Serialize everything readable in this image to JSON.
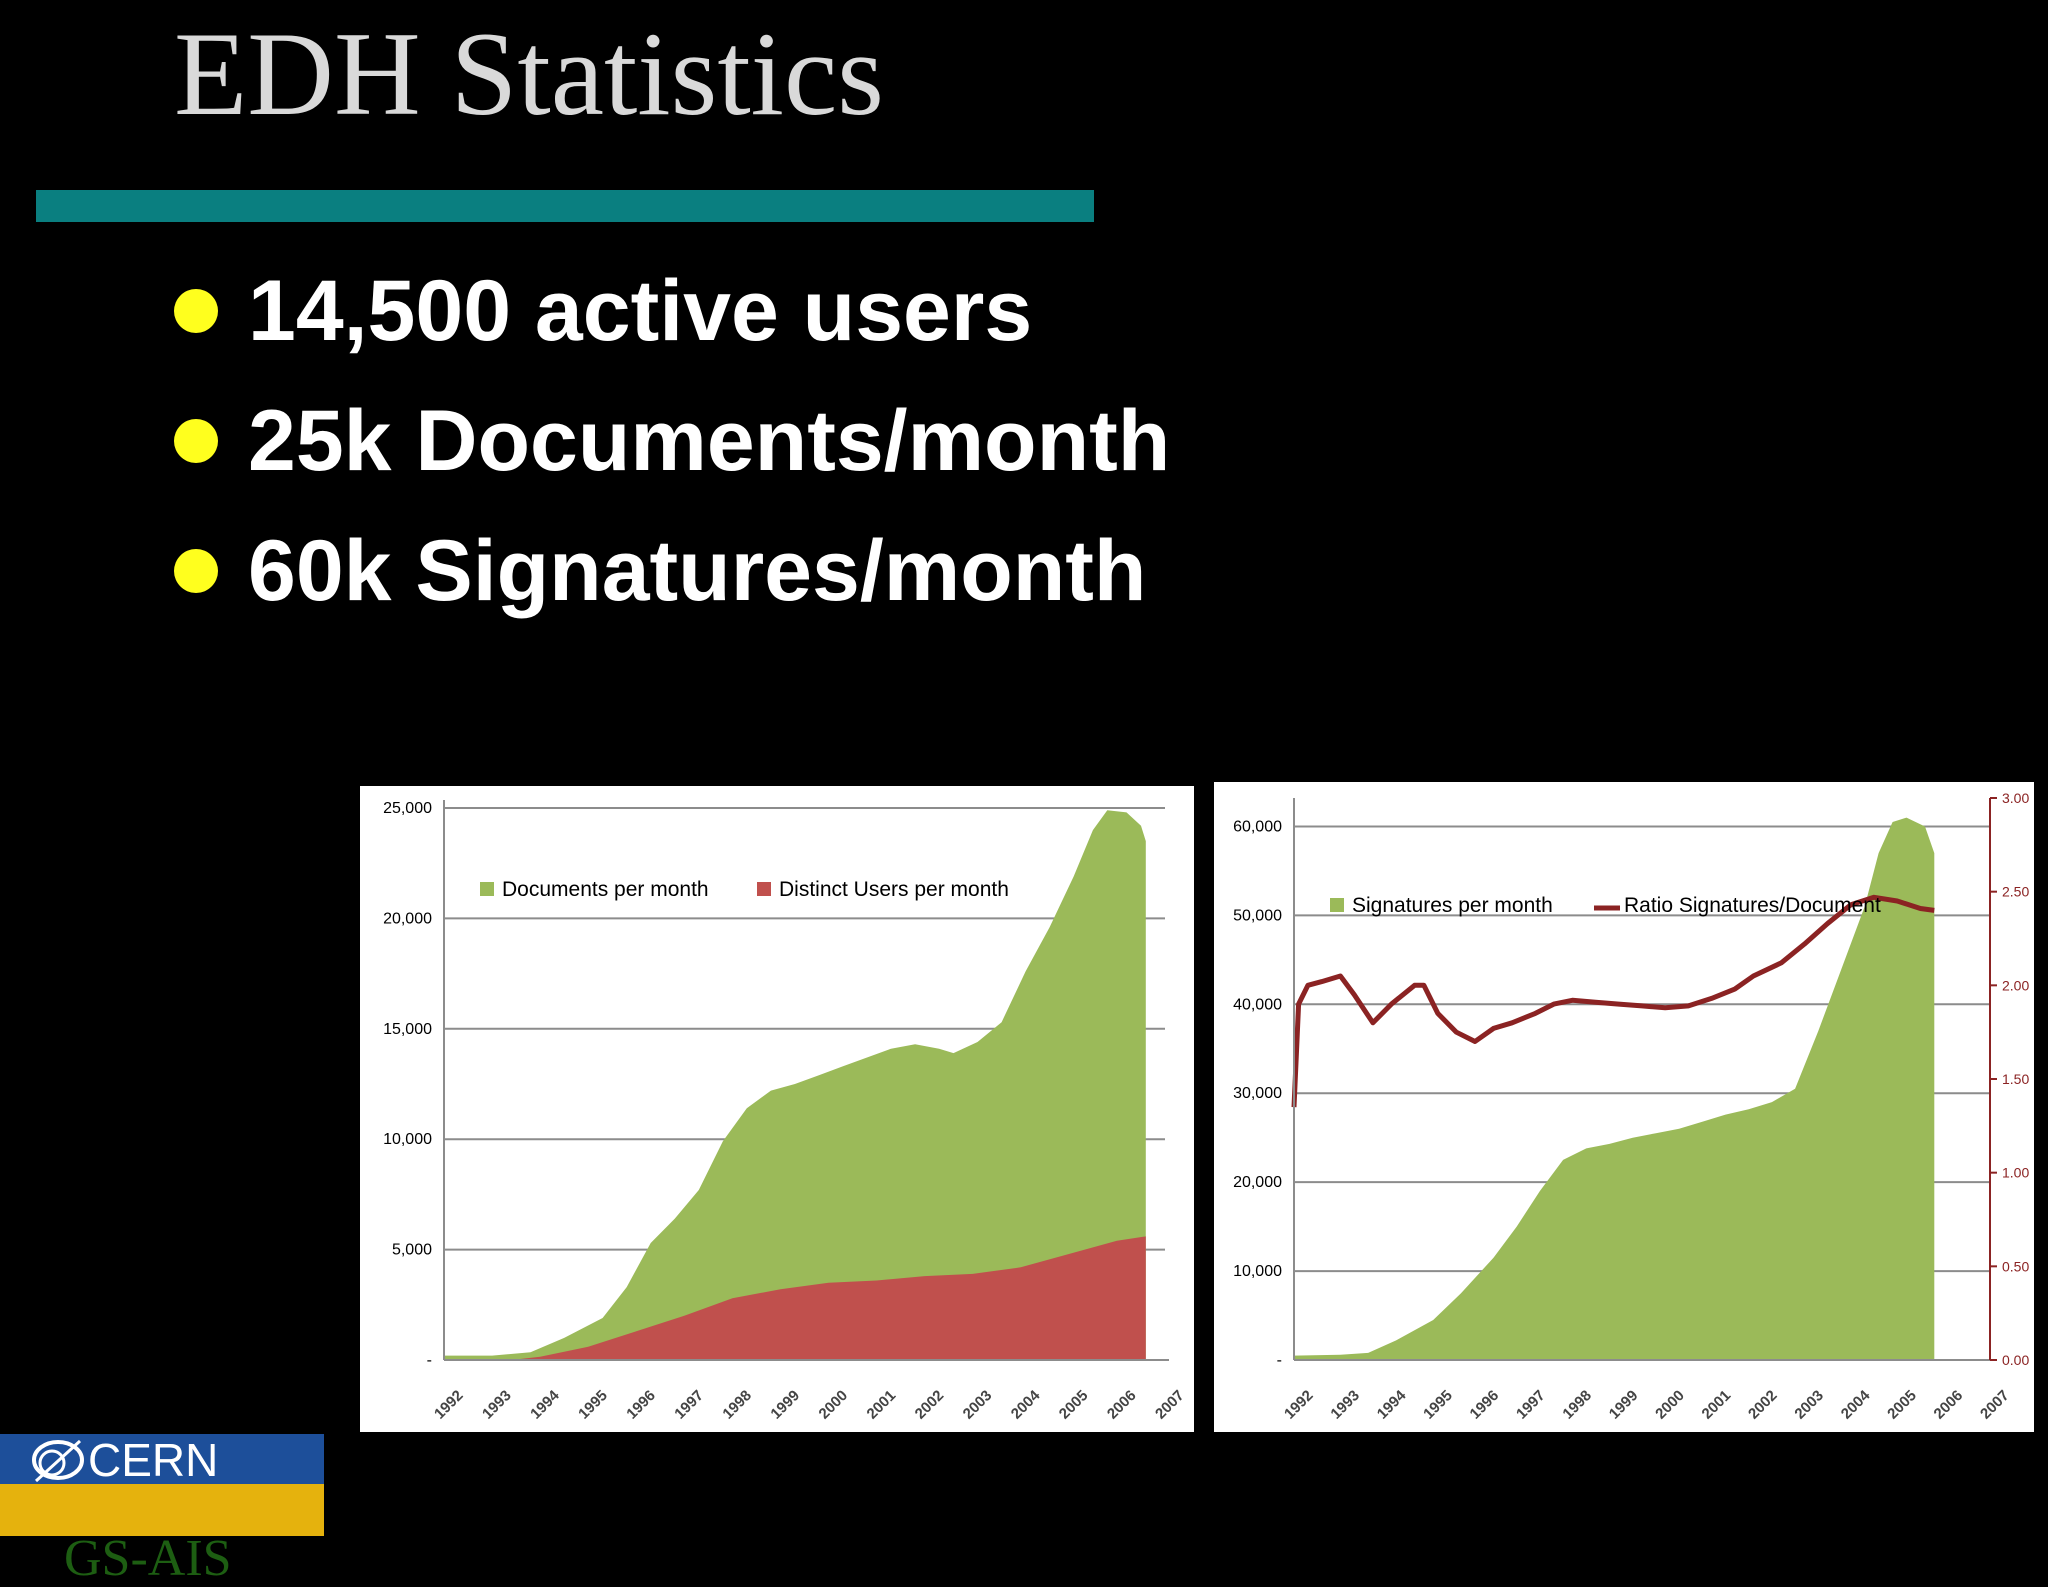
{
  "slide": {
    "title": "EDH Statistics",
    "bullets": [
      "14,500 active users",
      "25k Documents/month",
      "60k Signatures/month"
    ],
    "accent_color": "#0a7f80",
    "bullet_color": "#ffff1e"
  },
  "logo": {
    "org": "CERN",
    "department": "GS-AIS"
  },
  "chart_data": [
    {
      "type": "area",
      "title": "",
      "xlabel": "",
      "ylabel": "",
      "x_tick_labels": [
        "1992",
        "1993",
        "1994",
        "1995",
        "1996",
        "1997",
        "1998",
        "1999",
        "2000",
        "2001",
        "2002",
        "2003",
        "2004",
        "2005",
        "2006",
        "2007"
      ],
      "y_tick_labels": [
        "-",
        "5,000",
        "10,000",
        "15,000",
        "20,000",
        "25,000"
      ],
      "ylim": [
        0,
        25000
      ],
      "legend": "top-left",
      "grid": "horizontal",
      "series": [
        {
          "name": "Documents per month",
          "color": "#9bba59",
          "points": [
            [
              1992.0,
              200
            ],
            [
              1993.0,
              200
            ],
            [
              1993.8,
              350
            ],
            [
              1994.5,
              1000
            ],
            [
              1995.3,
              1900
            ],
            [
              1995.8,
              3300
            ],
            [
              1996.3,
              5300
            ],
            [
              1996.8,
              6400
            ],
            [
              1997.3,
              7700
            ],
            [
              1997.8,
              9900
            ],
            [
              1998.3,
              11400
            ],
            [
              1998.8,
              12200
            ],
            [
              1999.3,
              12500
            ],
            [
              1999.8,
              12900
            ],
            [
              2000.3,
              13300
            ],
            [
              2000.8,
              13700
            ],
            [
              2001.3,
              14100
            ],
            [
              2001.8,
              14300
            ],
            [
              2002.3,
              14100
            ],
            [
              2002.6,
              13900
            ],
            [
              2003.1,
              14400
            ],
            [
              2003.6,
              15300
            ],
            [
              2004.1,
              17600
            ],
            [
              2004.6,
              19600
            ],
            [
              2005.1,
              21900
            ],
            [
              2005.5,
              24000
            ],
            [
              2005.8,
              24900
            ],
            [
              2006.2,
              24800
            ],
            [
              2006.5,
              24200
            ],
            [
              2006.6,
              23500
            ]
          ]
        },
        {
          "name": "Distinct Users per month",
          "color": "#c0504d",
          "points": [
            [
              1992.0,
              0
            ],
            [
              1993.4,
              0
            ],
            [
              1994.0,
              150
            ],
            [
              1995.0,
              600
            ],
            [
              1996.0,
              1300
            ],
            [
              1997.0,
              2000
            ],
            [
              1998.0,
              2800
            ],
            [
              1999.0,
              3200
            ],
            [
              2000.0,
              3500
            ],
            [
              2001.0,
              3600
            ],
            [
              2002.0,
              3800
            ],
            [
              2003.0,
              3900
            ],
            [
              2004.0,
              4200
            ],
            [
              2005.0,
              4800
            ],
            [
              2006.0,
              5400
            ],
            [
              2006.6,
              5600
            ]
          ]
        }
      ]
    },
    {
      "type": "area",
      "title": "",
      "xlabel": "",
      "ylabel": "",
      "x_tick_labels": [
        "1992",
        "1993",
        "1994",
        "1995",
        "1996",
        "1997",
        "1998",
        "1999",
        "2000",
        "2001",
        "2002",
        "2003",
        "2004",
        "2005",
        "2006",
        "2007"
      ],
      "y_tick_labels": [
        "-",
        "10,000",
        "20,000",
        "30,000",
        "40,000",
        "50,000",
        "60,000"
      ],
      "y2_tick_labels": [
        "0.00",
        "0.50",
        "1.00",
        "1.50",
        "2.00",
        "2.50",
        "3.00"
      ],
      "ylim": [
        0,
        65000
      ],
      "y2lim": [
        0,
        3.0
      ],
      "legend": "top-left",
      "grid": "horizontal",
      "series": [
        {
          "name": "Signatures per month",
          "color": "#9bba59",
          "axis": "left",
          "points": [
            [
              1992.0,
              500
            ],
            [
              1993.0,
              600
            ],
            [
              1993.6,
              800
            ],
            [
              1994.2,
              2200
            ],
            [
              1995.0,
              4500
            ],
            [
              1995.6,
              7500
            ],
            [
              1996.3,
              11500
            ],
            [
              1996.8,
              15000
            ],
            [
              1997.3,
              19000
            ],
            [
              1997.8,
              22500
            ],
            [
              1998.3,
              23800
            ],
            [
              1998.8,
              24300
            ],
            [
              1999.3,
              25000
            ],
            [
              1999.8,
              25500
            ],
            [
              2000.3,
              26000
            ],
            [
              2000.8,
              26800
            ],
            [
              2001.3,
              27600
            ],
            [
              2001.8,
              28200
            ],
            [
              2002.3,
              29000
            ],
            [
              2002.8,
              30500
            ],
            [
              2003.3,
              37000
            ],
            [
              2003.8,
              44000
            ],
            [
              2004.3,
              51000
            ],
            [
              2004.6,
              57000
            ],
            [
              2004.9,
              60500
            ],
            [
              2005.2,
              61000
            ],
            [
              2005.6,
              60000
            ],
            [
              2005.8,
              57000
            ]
          ]
        },
        {
          "name": "Ratio Signatures/Document",
          "color": "#8b2323",
          "axis": "right",
          "points": [
            [
              1992.0,
              1.35
            ],
            [
              1992.1,
              1.9
            ],
            [
              1992.3,
              2.0
            ],
            [
              1992.6,
              2.02
            ],
            [
              1993.0,
              2.05
            ],
            [
              1993.3,
              1.95
            ],
            [
              1993.7,
              1.8
            ],
            [
              1994.1,
              1.9
            ],
            [
              1994.6,
              2.0
            ],
            [
              1994.8,
              2.0
            ],
            [
              1995.1,
              1.85
            ],
            [
              1995.5,
              1.75
            ],
            [
              1995.9,
              1.7
            ],
            [
              1996.3,
              1.77
            ],
            [
              1996.7,
              1.8
            ],
            [
              1997.2,
              1.85
            ],
            [
              1997.6,
              1.9
            ],
            [
              1998.0,
              1.92
            ],
            [
              1998.5,
              1.91
            ],
            [
              1999.0,
              1.9
            ],
            [
              1999.5,
              1.89
            ],
            [
              2000.0,
              1.88
            ],
            [
              2000.5,
              1.89
            ],
            [
              2001.0,
              1.93
            ],
            [
              2001.5,
              1.98
            ],
            [
              2001.9,
              2.05
            ],
            [
              2002.5,
              2.12
            ],
            [
              2003.0,
              2.22
            ],
            [
              2003.5,
              2.33
            ],
            [
              2004.0,
              2.43
            ],
            [
              2004.5,
              2.47
            ],
            [
              2005.0,
              2.45
            ],
            [
              2005.5,
              2.41
            ],
            [
              2005.8,
              2.4
            ]
          ]
        }
      ]
    }
  ]
}
